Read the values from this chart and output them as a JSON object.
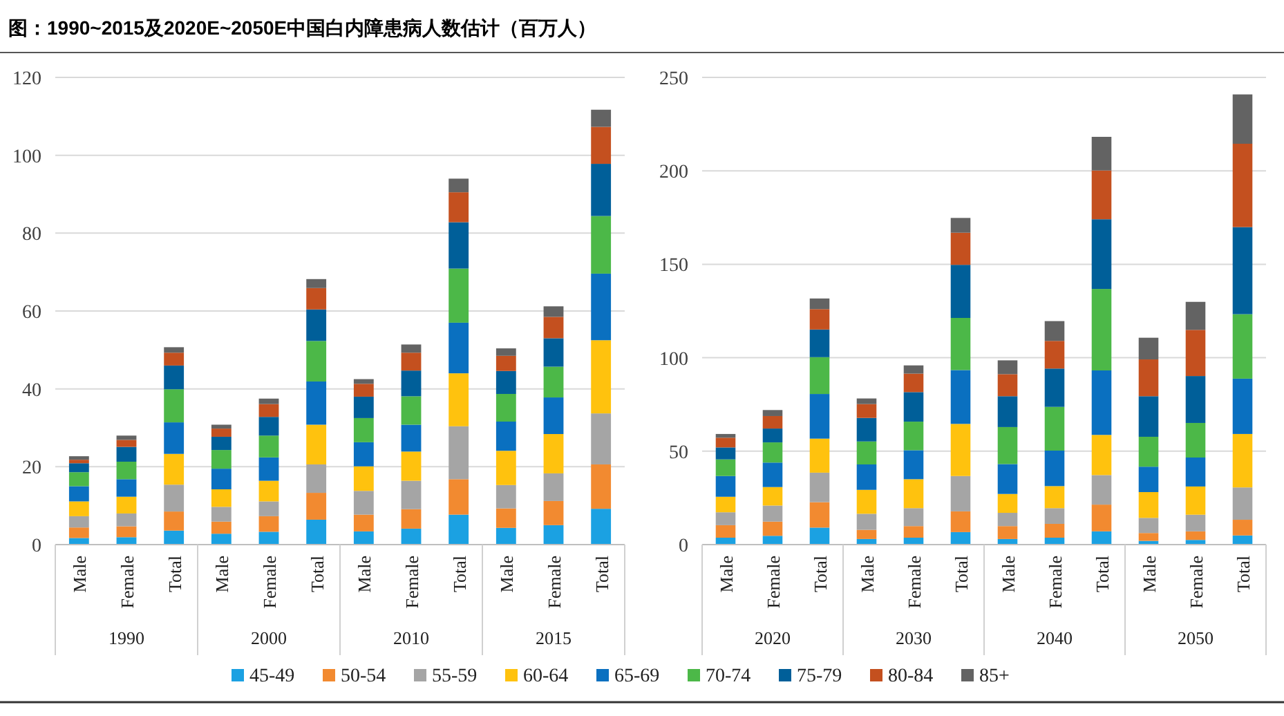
{
  "chart_data": [
    {
      "type": "bar",
      "stacked": true,
      "title": "图：1990~2015及2020E~2050E中国白内障患病人数估计（百万人）",
      "legend": "bottom",
      "grid": "y",
      "categories": [
        "Male",
        "Female",
        "Total",
        "Male",
        "Female",
        "Total",
        "Male",
        "Female",
        "Total",
        "Male",
        "Female",
        "Total"
      ],
      "annotations": [
        "1990",
        "2000",
        "2010",
        "2015"
      ],
      "ylim": [
        0,
        120
      ],
      "yticks": [
        0,
        20,
        40,
        60,
        80,
        100,
        120
      ],
      "series": [
        {
          "name": "45-49",
          "color": "#1ba1e2",
          "values": [
            1.7,
            1.9,
            3.6,
            2.8,
            3.3,
            6.4,
            3.4,
            4.1,
            7.7,
            4.3,
            5.0,
            9.2
          ]
        },
        {
          "name": "50-54",
          "color": "#f28a30",
          "values": [
            2.7,
            2.8,
            4.9,
            3.1,
            4.0,
            6.9,
            4.3,
            5.0,
            9.1,
            5.0,
            6.2,
            11.4
          ]
        },
        {
          "name": "55-59",
          "color": "#a5a5a5",
          "values": [
            2.9,
            3.3,
            6.9,
            3.8,
            3.8,
            7.3,
            6.1,
            7.3,
            13.6,
            6.0,
            7.1,
            13.1
          ]
        },
        {
          "name": "60-64",
          "color": "#ffc20e",
          "values": [
            3.8,
            4.3,
            7.9,
            4.5,
            5.3,
            10.2,
            6.3,
            7.5,
            13.6,
            8.8,
            10.1,
            18.8
          ]
        },
        {
          "name": "65-69",
          "color": "#0a70c0",
          "values": [
            3.9,
            4.5,
            8.1,
            5.3,
            6.0,
            11.1,
            6.2,
            6.9,
            13.0,
            7.5,
            9.4,
            17.1
          ]
        },
        {
          "name": "70-74",
          "color": "#4cb848",
          "values": [
            3.6,
            4.5,
            8.5,
            4.8,
            5.6,
            10.4,
            6.2,
            7.3,
            13.9,
            7.1,
            7.9,
            14.8
          ]
        },
        {
          "name": "75-79",
          "color": "#005f99",
          "values": [
            2.3,
            3.8,
            6.1,
            3.4,
            4.8,
            8.1,
            5.5,
            6.6,
            11.9,
            5.9,
            7.3,
            13.4
          ]
        },
        {
          "name": "80-84",
          "color": "#c4501f",
          "values": [
            0.9,
            1.8,
            3.3,
            2.1,
            3.3,
            5.5,
            3.3,
            4.6,
            7.7,
            3.9,
            5.5,
            9.5
          ]
        },
        {
          "name": "85+",
          "color": "#636363",
          "values": [
            0.9,
            1.1,
            1.4,
            1.0,
            1.4,
            2.3,
            1.2,
            2.1,
            3.5,
            1.9,
            2.7,
            4.4
          ]
        }
      ]
    },
    {
      "type": "bar",
      "stacked": true,
      "grid": "y",
      "categories": [
        "Male",
        "Female",
        "Total",
        "Male",
        "Female",
        "Total",
        "Male",
        "Female",
        "Total",
        "Male",
        "Female",
        "Total"
      ],
      "annotations": [
        "2020",
        "2030",
        "2040",
        "2050"
      ],
      "ylim": [
        0,
        250
      ],
      "yticks": [
        0,
        50,
        100,
        150,
        200,
        250
      ],
      "series": [
        {
          "color": "#1ba1e2",
          "values": [
            3.7,
            4.7,
            9.1,
            3.0,
            3.7,
            6.7,
            3.0,
            3.7,
            7.1,
            2.0,
            2.5,
            4.9
          ]
        },
        {
          "color": "#f28a30",
          "values": [
            6.7,
            7.6,
            13.6,
            4.9,
            6.2,
            11.1,
            6.9,
            7.4,
            14.3,
            4.2,
            4.6,
            8.4
          ]
        },
        {
          "color": "#a5a5a5",
          "values": [
            6.9,
            8.6,
            15.8,
            8.6,
            9.6,
            18.9,
            7.1,
            8.4,
            15.8,
            8.1,
            8.9,
            17.3
          ]
        },
        {
          "color": "#ffc20e",
          "values": [
            8.3,
            9.9,
            18.2,
            12.8,
            15.5,
            27.9,
            10.1,
            11.8,
            21.5,
            13.8,
            15.1,
            28.6
          ]
        },
        {
          "color": "#0a70c0",
          "values": [
            11.1,
            13.1,
            23.9,
            13.6,
            15.5,
            28.8,
            16.0,
            19.0,
            34.5,
            13.6,
            15.5,
            29.6
          ]
        },
        {
          "color": "#4cb848",
          "values": [
            8.9,
            10.8,
            19.7,
            12.3,
            15.3,
            27.9,
            19.8,
            23.4,
            43.6,
            16.0,
            18.5,
            34.5
          ]
        },
        {
          "color": "#005f99",
          "values": [
            6.4,
            7.4,
            14.8,
            12.6,
            15.8,
            28.4,
            16.5,
            20.5,
            37.3,
            21.7,
            25.1,
            46.6
          ]
        },
        {
          "color": "#c4501f",
          "values": [
            5.2,
            6.7,
            10.9,
            7.4,
            9.9,
            17.2,
            11.8,
            14.8,
            26.1,
            19.7,
            24.7,
            44.6
          ]
        },
        {
          "color": "#636363",
          "values": [
            2.0,
            3.2,
            5.7,
            3.0,
            4.4,
            7.9,
            7.4,
            10.6,
            18.0,
            11.6,
            15.0,
            26.4
          ]
        }
      ]
    }
  ]
}
